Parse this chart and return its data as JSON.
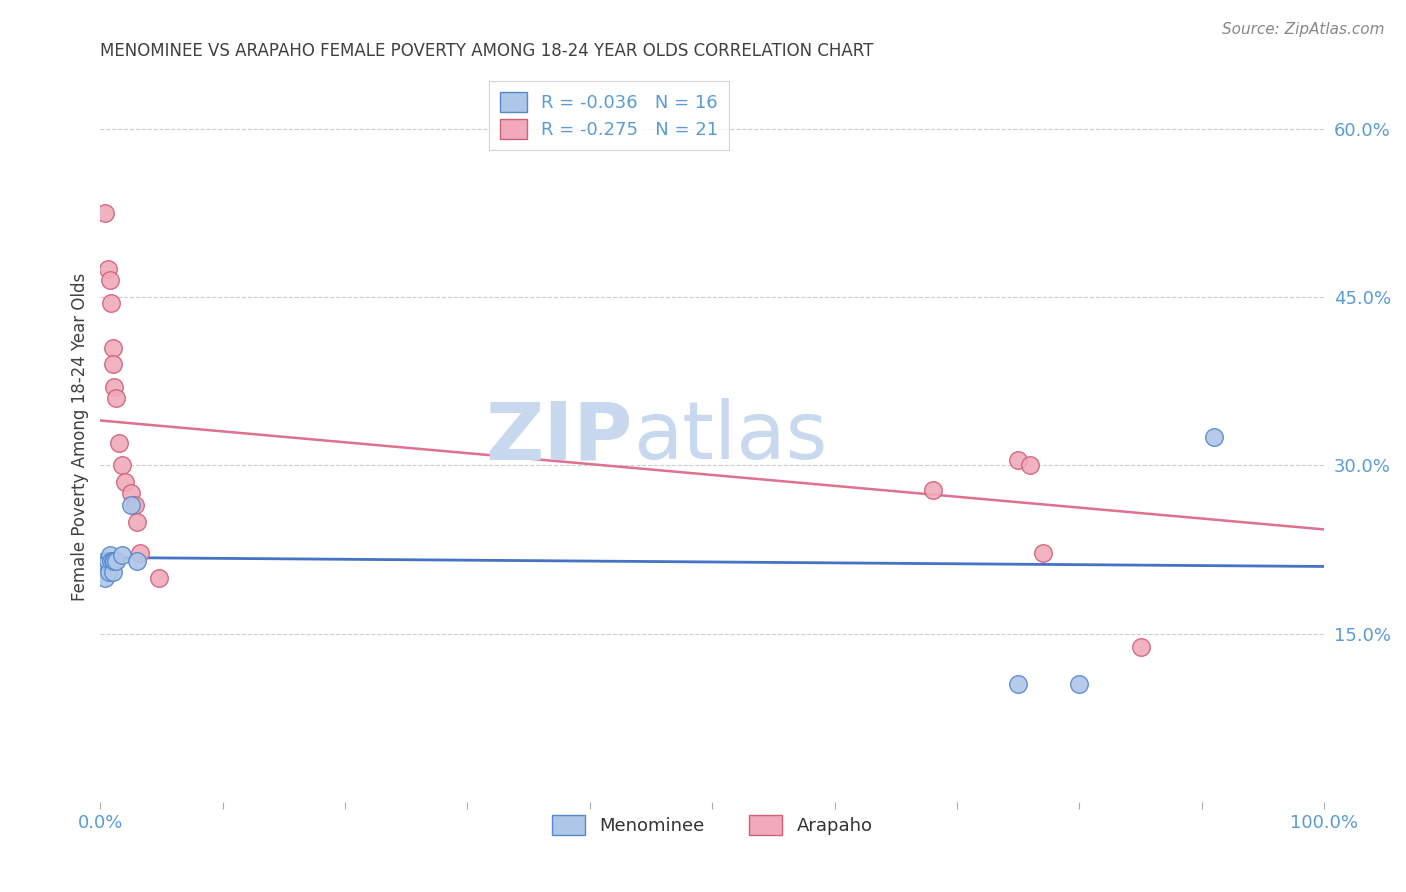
{
  "title": "MENOMINEE VS ARAPAHO FEMALE POVERTY AMONG 18-24 YEAR OLDS CORRELATION CHART",
  "source": "Source: ZipAtlas.com",
  "ylabel": "Female Poverty Among 18-24 Year Olds",
  "ytick_labels": [
    "15.0%",
    "30.0%",
    "45.0%",
    "60.0%"
  ],
  "ytick_values": [
    0.15,
    0.3,
    0.45,
    0.6
  ],
  "xlim": [
    0.0,
    1.0
  ],
  "ylim": [
    0.0,
    0.65
  ],
  "menominee_x": [
    0.004,
    0.004,
    0.006,
    0.007,
    0.008,
    0.009,
    0.01,
    0.01,
    0.011,
    0.013,
    0.018,
    0.025,
    0.03,
    0.75,
    0.8,
    0.91
  ],
  "menominee_y": [
    0.215,
    0.2,
    0.215,
    0.205,
    0.22,
    0.215,
    0.215,
    0.205,
    0.215,
    0.215,
    0.22,
    0.265,
    0.215,
    0.105,
    0.105,
    0.325
  ],
  "arapaho_x": [
    0.004,
    0.006,
    0.008,
    0.009,
    0.01,
    0.01,
    0.011,
    0.013,
    0.015,
    0.018,
    0.02,
    0.025,
    0.028,
    0.03,
    0.032,
    0.048,
    0.68,
    0.75,
    0.76,
    0.77,
    0.85
  ],
  "arapaho_y": [
    0.525,
    0.475,
    0.465,
    0.445,
    0.405,
    0.39,
    0.37,
    0.36,
    0.32,
    0.3,
    0.285,
    0.275,
    0.265,
    0.25,
    0.222,
    0.2,
    0.278,
    0.305,
    0.3,
    0.222,
    0.138
  ],
  "menominee_color": "#aec6e8",
  "arapaho_color": "#f0aabb",
  "menominee_edge": "#5588cc",
  "arapaho_edge": "#d0607a",
  "menominee_R": "-0.036",
  "menominee_N": "16",
  "arapaho_R": "-0.275",
  "arapaho_N": "21",
  "trend_menominee_x0": 0.0,
  "trend_menominee_x1": 1.0,
  "trend_menominee_y0": 0.218,
  "trend_menominee_y1": 0.21,
  "trend_arapaho_x0": 0.0,
  "trend_arapaho_x1": 1.0,
  "trend_arapaho_y0": 0.34,
  "trend_arapaho_y1": 0.243,
  "trend_menominee_color": "#4472c4",
  "trend_arapaho_color": "#e07090",
  "background_color": "#ffffff",
  "grid_color": "#cccccc",
  "marker_size": 160,
  "title_color": "#404040",
  "value_color": "#5b9bd5",
  "label_color": "#333333",
  "tick_label_color": "#5b9bd5"
}
